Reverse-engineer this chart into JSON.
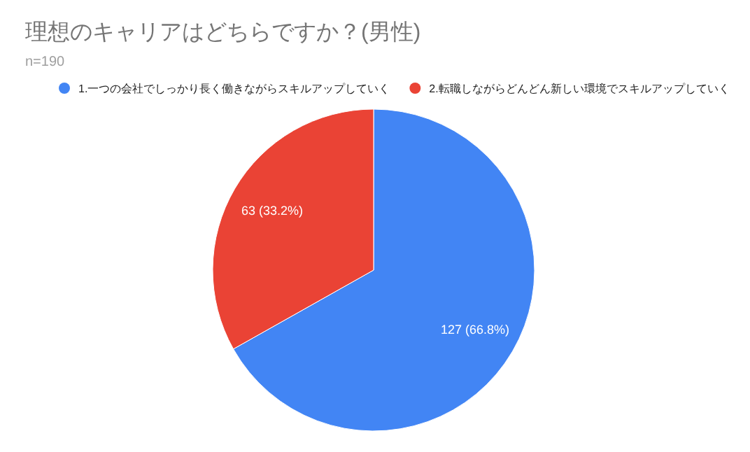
{
  "chart_data": {
    "type": "pie",
    "title": "理想のキャリアはどちらですか？(男性)",
    "subtitle": "n=190",
    "categories": [
      "1.一つの会社でしっかり長く働きながらスキルアップしていく",
      "2.転職しながらどんどん新しい環境でスキルアップしていく"
    ],
    "values": [
      127,
      63
    ],
    "colors": [
      "#4285f4",
      "#ea4335"
    ],
    "value_labels": [
      "127 (66.8%)",
      "63 (33.2%)"
    ],
    "legend": "top"
  }
}
